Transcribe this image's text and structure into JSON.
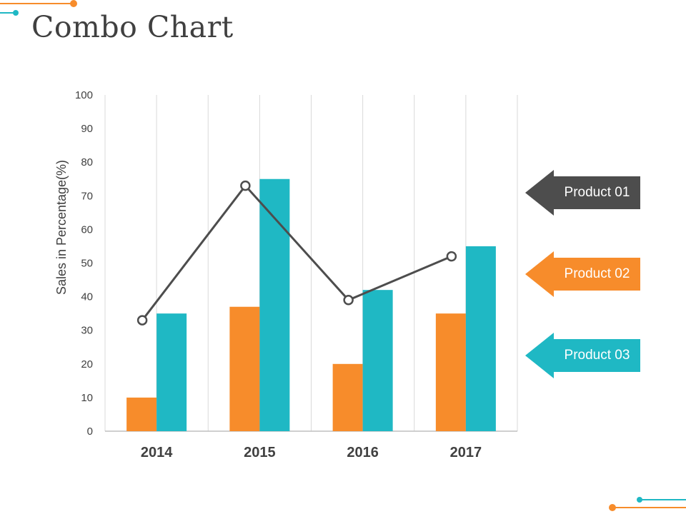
{
  "title": "Combo Chart",
  "colors": {
    "product01": "#4d4d4d",
    "product02": "#f78c2b",
    "product03": "#1fb8c4",
    "axis": "#bfbfbf",
    "grid": "#d9d9d9",
    "text": "#404040"
  },
  "legend": {
    "items": [
      {
        "label": "Product 01",
        "color": "#4d4d4d"
      },
      {
        "label": "Product 02",
        "color": "#f78c2b"
      },
      {
        "label": "Product 03",
        "color": "#1fb8c4"
      }
    ]
  },
  "chart_data": {
    "type": "bar",
    "categories": [
      "2014",
      "2015",
      "2016",
      "2017"
    ],
    "ylabel": "Sales in Percentage(%)",
    "xlabel": "",
    "ylim": [
      0,
      100
    ],
    "yticks": [
      0,
      10,
      20,
      30,
      40,
      50,
      60,
      70,
      80,
      90,
      100
    ],
    "grid": "vertical",
    "legend_position": "right",
    "series": [
      {
        "name": "Product 01",
        "type": "line",
        "values": [
          33,
          73,
          39,
          52
        ]
      },
      {
        "name": "Product 02",
        "type": "bar",
        "values": [
          10,
          37,
          20,
          35
        ]
      },
      {
        "name": "Product 03",
        "type": "bar",
        "values": [
          35,
          75,
          42,
          55
        ]
      }
    ]
  }
}
